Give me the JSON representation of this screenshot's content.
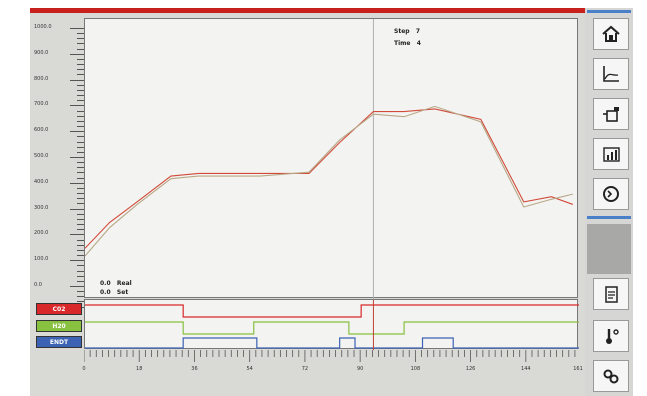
{
  "header": {
    "title": ""
  },
  "y_axis": {
    "labels": [
      "1000.0",
      "900.0",
      "800.0",
      "700.0",
      "600.0",
      "500.0",
      "400.0",
      "300.0",
      "200.0",
      "100.0",
      "0.0"
    ]
  },
  "info": {
    "step_label": "Step",
    "step_value": "7",
    "time_label": "Time",
    "time_value": "4"
  },
  "legend": {
    "real_value": "0.0",
    "real_label": "Real",
    "set_value": "0.0",
    "set_label": "Set"
  },
  "digital": {
    "labels": [
      "C02",
      "H20",
      "ENDT"
    ],
    "colors": [
      "#d8282a",
      "#88c040",
      "#3c62b4"
    ]
  },
  "x_axis": {
    "labels": [
      "0",
      "18",
      "36",
      "54",
      "72",
      "90",
      "108",
      "126",
      "144",
      "161"
    ]
  },
  "chart_data": {
    "type": "line",
    "title": "",
    "xlabel": "",
    "ylabel": "",
    "xlim": [
      0,
      161
    ],
    "ylim": [
      0,
      1000
    ],
    "cursor_x": 94,
    "series": [
      {
        "name": "",
        "color": "#d24a3a",
        "x": [
          0,
          8,
          17,
          28,
          37,
          57,
          73,
          83,
          94,
          104,
          114,
          129,
          143,
          152,
          159
        ],
        "y": [
          150,
          250,
          330,
          430,
          440,
          440,
          440,
          560,
          680,
          680,
          690,
          650,
          330,
          350,
          320
        ]
      },
      {
        "name": "",
        "color": "#b8a888",
        "x": [
          0,
          8,
          17,
          28,
          37,
          57,
          73,
          83,
          94,
          104,
          114,
          129,
          143,
          152,
          159
        ],
        "y": [
          120,
          230,
          320,
          420,
          430,
          430,
          445,
          570,
          670,
          660,
          700,
          640,
          310,
          340,
          360
        ]
      }
    ],
    "digital_series": [
      {
        "name": "C02",
        "color": "#d8282a",
        "x": [
          0,
          32,
          32,
          90,
          90,
          161
        ],
        "level": [
          1,
          1,
          0,
          0,
          1,
          1
        ]
      },
      {
        "name": "H20",
        "color": "#88c040",
        "x": [
          0,
          32,
          32,
          55,
          55,
          86,
          86,
          104,
          104,
          161
        ],
        "level": [
          1,
          1,
          0,
          0,
          1,
          1,
          0,
          0,
          1,
          1
        ]
      },
      {
        "name": "ENDT",
        "color": "#3c62b4",
        "x": [
          0,
          32,
          32,
          56,
          56,
          83,
          83,
          88,
          88,
          110,
          110,
          120,
          120,
          161
        ],
        "level": [
          0,
          0,
          1,
          1,
          0,
          0,
          1,
          1,
          0,
          0,
          1,
          1,
          0,
          0
        ]
      }
    ]
  },
  "sidebar": {
    "buttons": [
      "home",
      "chart",
      "injector",
      "statistics",
      "cycle",
      "document",
      "temperature",
      "link"
    ]
  }
}
